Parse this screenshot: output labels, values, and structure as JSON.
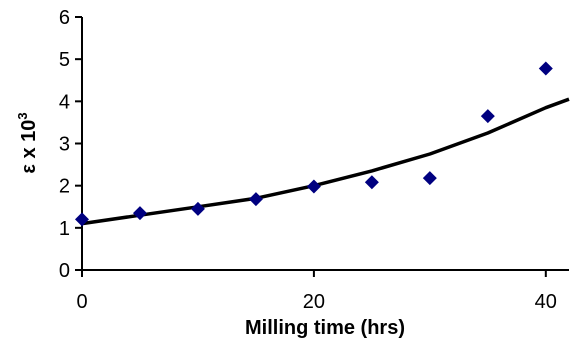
{
  "chart_data": {
    "type": "scatter",
    "xlabel": "Milling time (hrs)",
    "ylabel": "ε x 10",
    "ylabel_superscript": "3",
    "xlim": [
      0,
      42
    ],
    "ylim": [
      0,
      6
    ],
    "x_ticks": [
      0,
      20,
      40
    ],
    "y_ticks": [
      0,
      1,
      2,
      3,
      4,
      5,
      6
    ],
    "grid": false,
    "legend": "none",
    "series": [
      {
        "kind": "points",
        "marker": "diamond",
        "color": "#000080",
        "x": [
          0,
          5,
          10,
          15,
          20,
          25,
          30,
          35,
          40
        ],
        "y": [
          1.2,
          1.35,
          1.45,
          1.68,
          1.98,
          2.08,
          2.18,
          3.65,
          4.78
        ]
      },
      {
        "kind": "trend-line",
        "color": "#000000",
        "x": [
          0,
          5,
          10,
          15,
          20,
          25,
          30,
          35,
          40,
          42
        ],
        "y": [
          1.1,
          1.3,
          1.5,
          1.7,
          2.0,
          2.35,
          2.75,
          3.25,
          3.85,
          4.05
        ]
      }
    ]
  }
}
